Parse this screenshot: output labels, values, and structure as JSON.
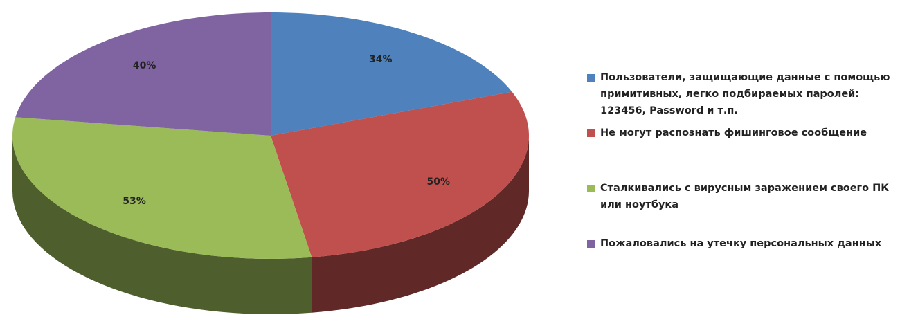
{
  "chart_data": {
    "type": "pie",
    "categories": [
      "Пользователи, защищающие данные с помощью примитивных, легко подбираемых паролей: 123456, Password и т.п.",
      "Не могут распознать фишинговое сообщение",
      "Сталкивались с вирусным заражением своего ПК или ноутбука",
      "Пожаловались на утечку персональных данных"
    ],
    "values": [
      34,
      50,
      53,
      40
    ],
    "value_labels": [
      "34%",
      "50%",
      "53%",
      "40%"
    ],
    "colors": [
      "#4f81bd",
      "#c0504d",
      "#9bbb59",
      "#8064a2"
    ],
    "legend": "right"
  }
}
